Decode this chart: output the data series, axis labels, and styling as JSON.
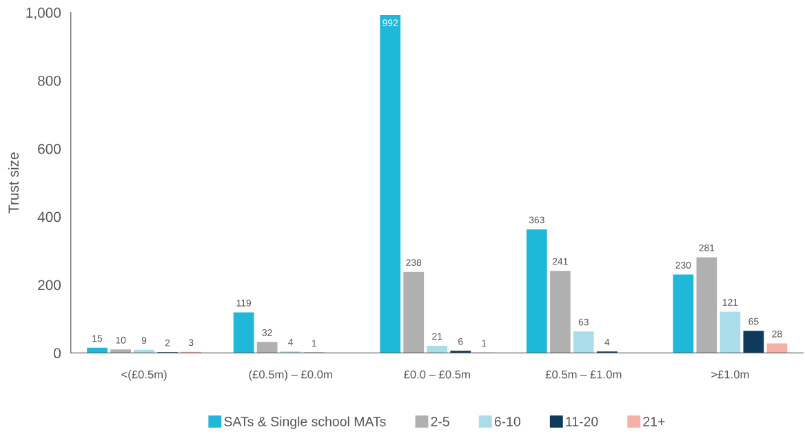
{
  "chart_data": {
    "type": "bar",
    "ylabel": "Trust size",
    "categories": [
      "<(£0.5m)",
      "(£0.5m) – £0.0m",
      "£0.0 – £0.5m",
      "£0.5m – £1.0m",
      ">£1.0m"
    ],
    "series": [
      {
        "name": "SATs & Single school MATs",
        "color": "#1fb8d8",
        "values": [
          15,
          119,
          992,
          363,
          230
        ],
        "value_labels": [
          "15",
          "119",
          "992",
          "363",
          "230"
        ]
      },
      {
        "name": "2-5",
        "color": "#b0b0b0",
        "values": [
          10,
          32,
          238,
          241,
          281
        ],
        "value_labels": [
          "10",
          "32",
          "238",
          "241",
          "281"
        ]
      },
      {
        "name": "6-10",
        "color": "#abdcea",
        "values": [
          9,
          4,
          21,
          63,
          121
        ],
        "value_labels": [
          "9",
          "4",
          "21",
          "63",
          "121"
        ]
      },
      {
        "name": "11-20",
        "color": "#0e3a5c",
        "values": [
          2,
          1,
          6,
          4,
          65
        ],
        "value_labels": [
          "2",
          "1",
          "6",
          "4",
          "65"
        ]
      },
      {
        "name": "21+",
        "color": "#f6b0a5",
        "values": [
          3,
          0,
          1,
          0,
          28
        ],
        "value_labels": [
          "3",
          null,
          "1",
          null,
          "28"
        ]
      }
    ],
    "ylim": [
      0,
      1000
    ],
    "yticks": [
      0,
      200,
      400,
      600,
      800,
      {
        "value": 1000,
        "label": "1,000"
      }
    ],
    "grid": false,
    "legend": "bottom"
  }
}
